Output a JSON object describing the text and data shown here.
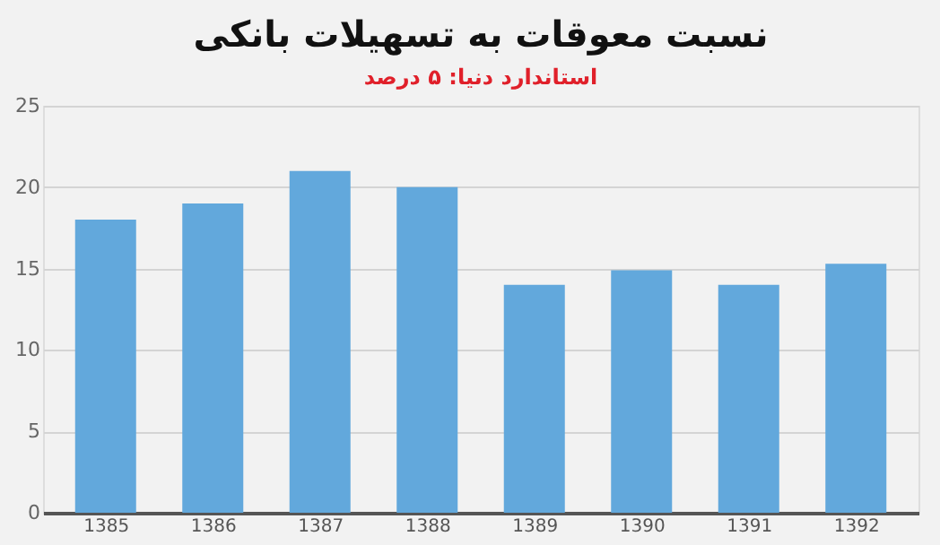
{
  "chart_data": {
    "type": "bar",
    "title": "نسبت معوقات به تسهیلات بانکی",
    "subtitle": "استاندارد دنیا: ۵ درصد",
    "categories": [
      "1385",
      "1386",
      "1387",
      "1388",
      "1389",
      "1390",
      "1391",
      "1392"
    ],
    "values": [
      18,
      19,
      21,
      20,
      14,
      14.9,
      14,
      15.3
    ],
    "color": "#62a8dc",
    "ylim": [
      0,
      25
    ],
    "yticks": [
      0,
      5,
      10,
      15,
      20,
      25
    ],
    "grid": "y"
  }
}
